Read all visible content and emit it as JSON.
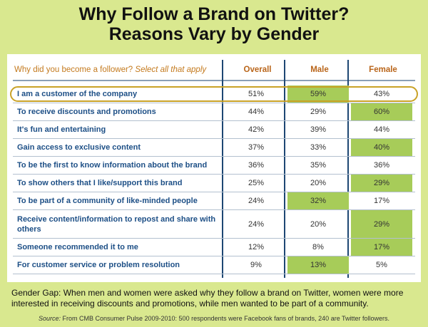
{
  "title_line1": "Why Follow a Brand on Twitter?",
  "title_line2": "Reasons Vary by Gender",
  "question_prefix": "Why did you become a follower?",
  "question_suffix": "Select all that apply",
  "note": "Gender Gap: When men and women were asked why they follow a brand on Twitter, women were more interested in receiving discounts and promotions, while men wanted to be part of a community.",
  "source_label": "Source:",
  "source_text": "From CMB Consumer Pulse 2009-2010:  500 respondents were Facebook fans of brands, 240 are Twitter followers.",
  "colors": {
    "highlight": "#a7cc59",
    "background": "#d9e88f",
    "label": "#1d4f86",
    "header": "#b9651a",
    "oval": "#c9a227"
  },
  "chart_data": {
    "type": "table",
    "columns": [
      "Overall",
      "Male",
      "Female"
    ],
    "rows": [
      {
        "label": "I am a customer of the company",
        "values": [
          "51%",
          "59%",
          "43%"
        ],
        "highlight": [
          false,
          true,
          false
        ],
        "circled": true
      },
      {
        "label": "To receive discounts and promotions",
        "values": [
          "44%",
          "29%",
          "60%"
        ],
        "highlight": [
          false,
          false,
          true
        ]
      },
      {
        "label": "It's fun and entertaining",
        "values": [
          "42%",
          "39%",
          "44%"
        ],
        "highlight": [
          false,
          false,
          false
        ]
      },
      {
        "label": "Gain access to exclusive content",
        "values": [
          "37%",
          "33%",
          "40%"
        ],
        "highlight": [
          false,
          false,
          true
        ]
      },
      {
        "label": "To be the first to know information about the brand",
        "values": [
          "36%",
          "35%",
          "36%"
        ],
        "highlight": [
          false,
          false,
          false
        ]
      },
      {
        "label": "To show others that I like/support this brand",
        "values": [
          "25%",
          "20%",
          "29%"
        ],
        "highlight": [
          false,
          false,
          true
        ]
      },
      {
        "label": "To be part of a community of like-minded people",
        "values": [
          "24%",
          "32%",
          "17%"
        ],
        "highlight": [
          false,
          true,
          false
        ]
      },
      {
        "label": "Receive content/information to repost and share with others",
        "values": [
          "24%",
          "20%",
          "29%"
        ],
        "highlight": [
          false,
          false,
          true
        ]
      },
      {
        "label": "Someone recommended it to me",
        "values": [
          "12%",
          "8%",
          "17%"
        ],
        "highlight": [
          false,
          false,
          true
        ]
      },
      {
        "label": "For customer service or problem resolution",
        "values": [
          "9%",
          "13%",
          "5%"
        ],
        "highlight": [
          false,
          true,
          false
        ]
      }
    ]
  }
}
